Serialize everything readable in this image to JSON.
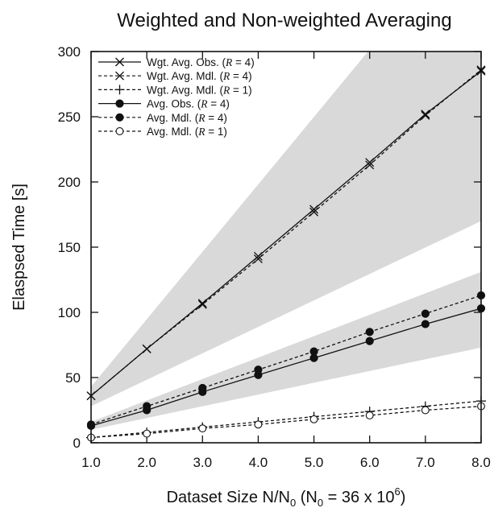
{
  "chart_data": {
    "type": "line",
    "title": "Weighted and Non-weighted Averaging",
    "xlabel": {
      "prefix": "Dataset Size N/N",
      "prefix_sub": "0",
      "mid": " (N",
      "mid_sub": "0",
      "eq": " = 36 x 10",
      "sup": "6",
      "close": ")"
    },
    "ylabel": "Elaspsed Time [s]",
    "xlim": [
      1,
      8
    ],
    "ylim": [
      0,
      300
    ],
    "x_ticks": [
      1,
      2,
      3,
      4,
      5,
      6,
      7,
      8
    ],
    "x_tick_labels": [
      "1.0",
      "2.0",
      "3.0",
      "4.0",
      "5.0",
      "6.0",
      "7.0",
      "8.0"
    ],
    "y_ticks": [
      0,
      50,
      100,
      150,
      200,
      250,
      300
    ],
    "y_tick_labels": [
      "0",
      "50",
      "100",
      "150",
      "200",
      "250",
      "300"
    ],
    "legend_position": "top-left",
    "bands": [
      {
        "x": [
          1,
          8
        ],
        "lower": [
          28,
          170
        ],
        "upper": [
          43,
          405
        ]
      },
      {
        "x": [
          1,
          8
        ],
        "lower": [
          10,
          73
        ],
        "upper": [
          16,
          131
        ]
      }
    ],
    "series": [
      {
        "name": "Wgt. Avg. Obs. (R = 4)",
        "name_pre": "Wgt. Avg. Obs. (",
        "name_var": "R",
        "name_post": " = 4)",
        "line": "solid",
        "marker": "x",
        "x": [
          1,
          2,
          3,
          4,
          5,
          6,
          7,
          8
        ],
        "values": [
          36,
          72,
          107,
          143,
          179,
          215,
          252,
          285
        ]
      },
      {
        "name": "Wgt. Avg. Mdl. (R = 4)",
        "name_pre": "Wgt. Avg. Mdl. (",
        "name_var": "R",
        "name_post": " = 4)",
        "line": "dashed",
        "marker": "x",
        "x": [
          1,
          2,
          3,
          4,
          5,
          6,
          7,
          8
        ],
        "values": [
          36,
          72,
          106,
          141,
          177,
          213,
          251,
          286
        ]
      },
      {
        "name": "Wgt. Avg. Mdl. (R = 1)",
        "name_pre": "Wgt. Avg. Mdl. (",
        "name_var": "R",
        "name_post": " = 1)",
        "line": "dashed",
        "marker": "plus",
        "x": [
          1,
          2,
          3,
          4,
          5,
          6,
          7,
          8
        ],
        "values": [
          4,
          8,
          12,
          16,
          20,
          24,
          28,
          32
        ]
      },
      {
        "name": "Avg. Obs. (R = 4)",
        "name_pre": "Avg. Obs. (",
        "name_var": "R",
        "name_post": " = 4)",
        "line": "solid",
        "marker": "filled-circle",
        "x": [
          1,
          2,
          3,
          4,
          5,
          6,
          7,
          8
        ],
        "values": [
          13,
          25,
          39,
          52,
          65,
          78,
          91,
          103
        ]
      },
      {
        "name": "Avg. Mdl. (R = 4)",
        "name_pre": "Avg. Mdl. (",
        "name_var": "R",
        "name_post": " = 4)",
        "line": "dashed",
        "marker": "filled-circle",
        "x": [
          1,
          2,
          3,
          4,
          5,
          6,
          7,
          8
        ],
        "values": [
          14,
          28,
          42,
          56,
          70,
          85,
          99,
          113
        ]
      },
      {
        "name": "Avg. Mdl. (R = 1)",
        "name_pre": "Avg. Mdl. (",
        "name_var": "R",
        "name_post": " = 1)",
        "line": "dashed",
        "marker": "open-circle",
        "x": [
          1,
          2,
          3,
          4,
          5,
          6,
          7,
          8
        ],
        "values": [
          4,
          7,
          11,
          14,
          18,
          21,
          25,
          28
        ]
      }
    ]
  }
}
